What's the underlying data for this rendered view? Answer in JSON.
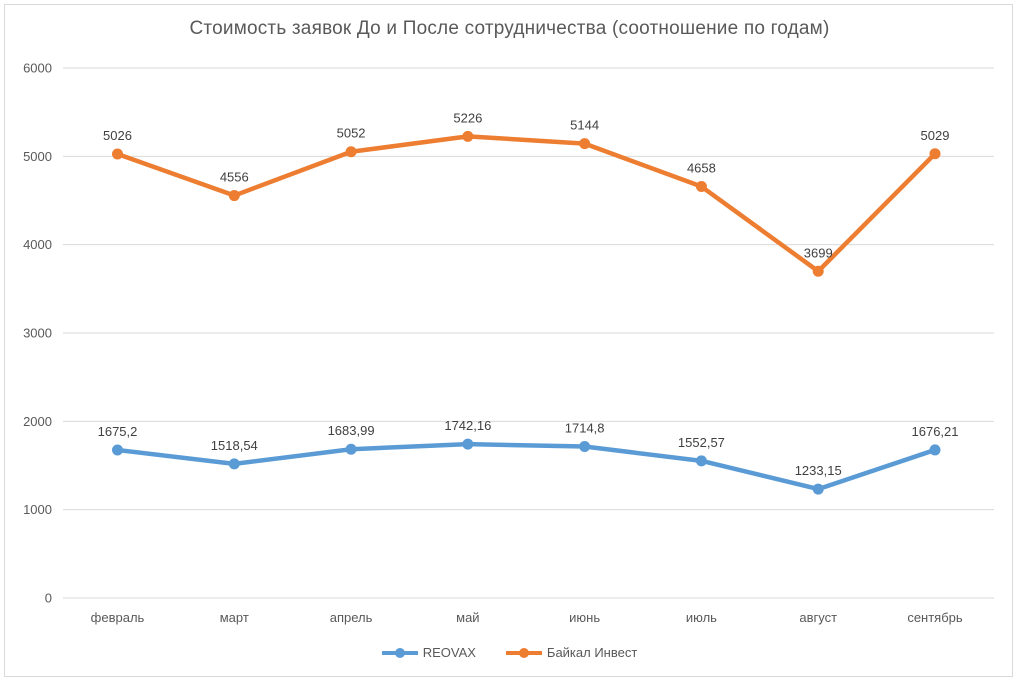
{
  "chart_data": {
    "type": "line",
    "title": "Стоимость заявок До и После сотрудничества (соотношение по годам)",
    "categories": [
      "февраль",
      "март",
      "апрель",
      "май",
      "июнь",
      "июль",
      "август",
      "сентябрь"
    ],
    "series": [
      {
        "name": "REOVAX",
        "color": "#5B9BD5",
        "values": [
          1675.2,
          1518.54,
          1683.99,
          1742.16,
          1714.8,
          1552.57,
          1233.15,
          1676.21
        ],
        "labels": [
          "1675,2",
          "1518,54",
          "1683,99",
          "1742,16",
          "1714,8",
          "1552,57",
          "1233,15",
          "1676,21"
        ]
      },
      {
        "name": "Байкал Инвест",
        "color": "#ED7D31",
        "values": [
          5026,
          4556,
          5052,
          5226,
          5144,
          4658,
          3699,
          5029
        ],
        "labels": [
          "5026",
          "4556",
          "5052",
          "5226",
          "5144",
          "4658",
          "3699",
          "5029"
        ]
      }
    ],
    "y_ticks": [
      0,
      1000,
      2000,
      3000,
      4000,
      5000,
      6000
    ],
    "ylim": [
      0,
      6000
    ],
    "grid": true,
    "legend_position": "bottom",
    "colors": {
      "grid": "#D9D9D9",
      "frame": "#D9D9D9",
      "tick_text": "#595959",
      "title_text": "#595959",
      "data_label_text": "#404040",
      "background": "#FFFFFF"
    }
  }
}
